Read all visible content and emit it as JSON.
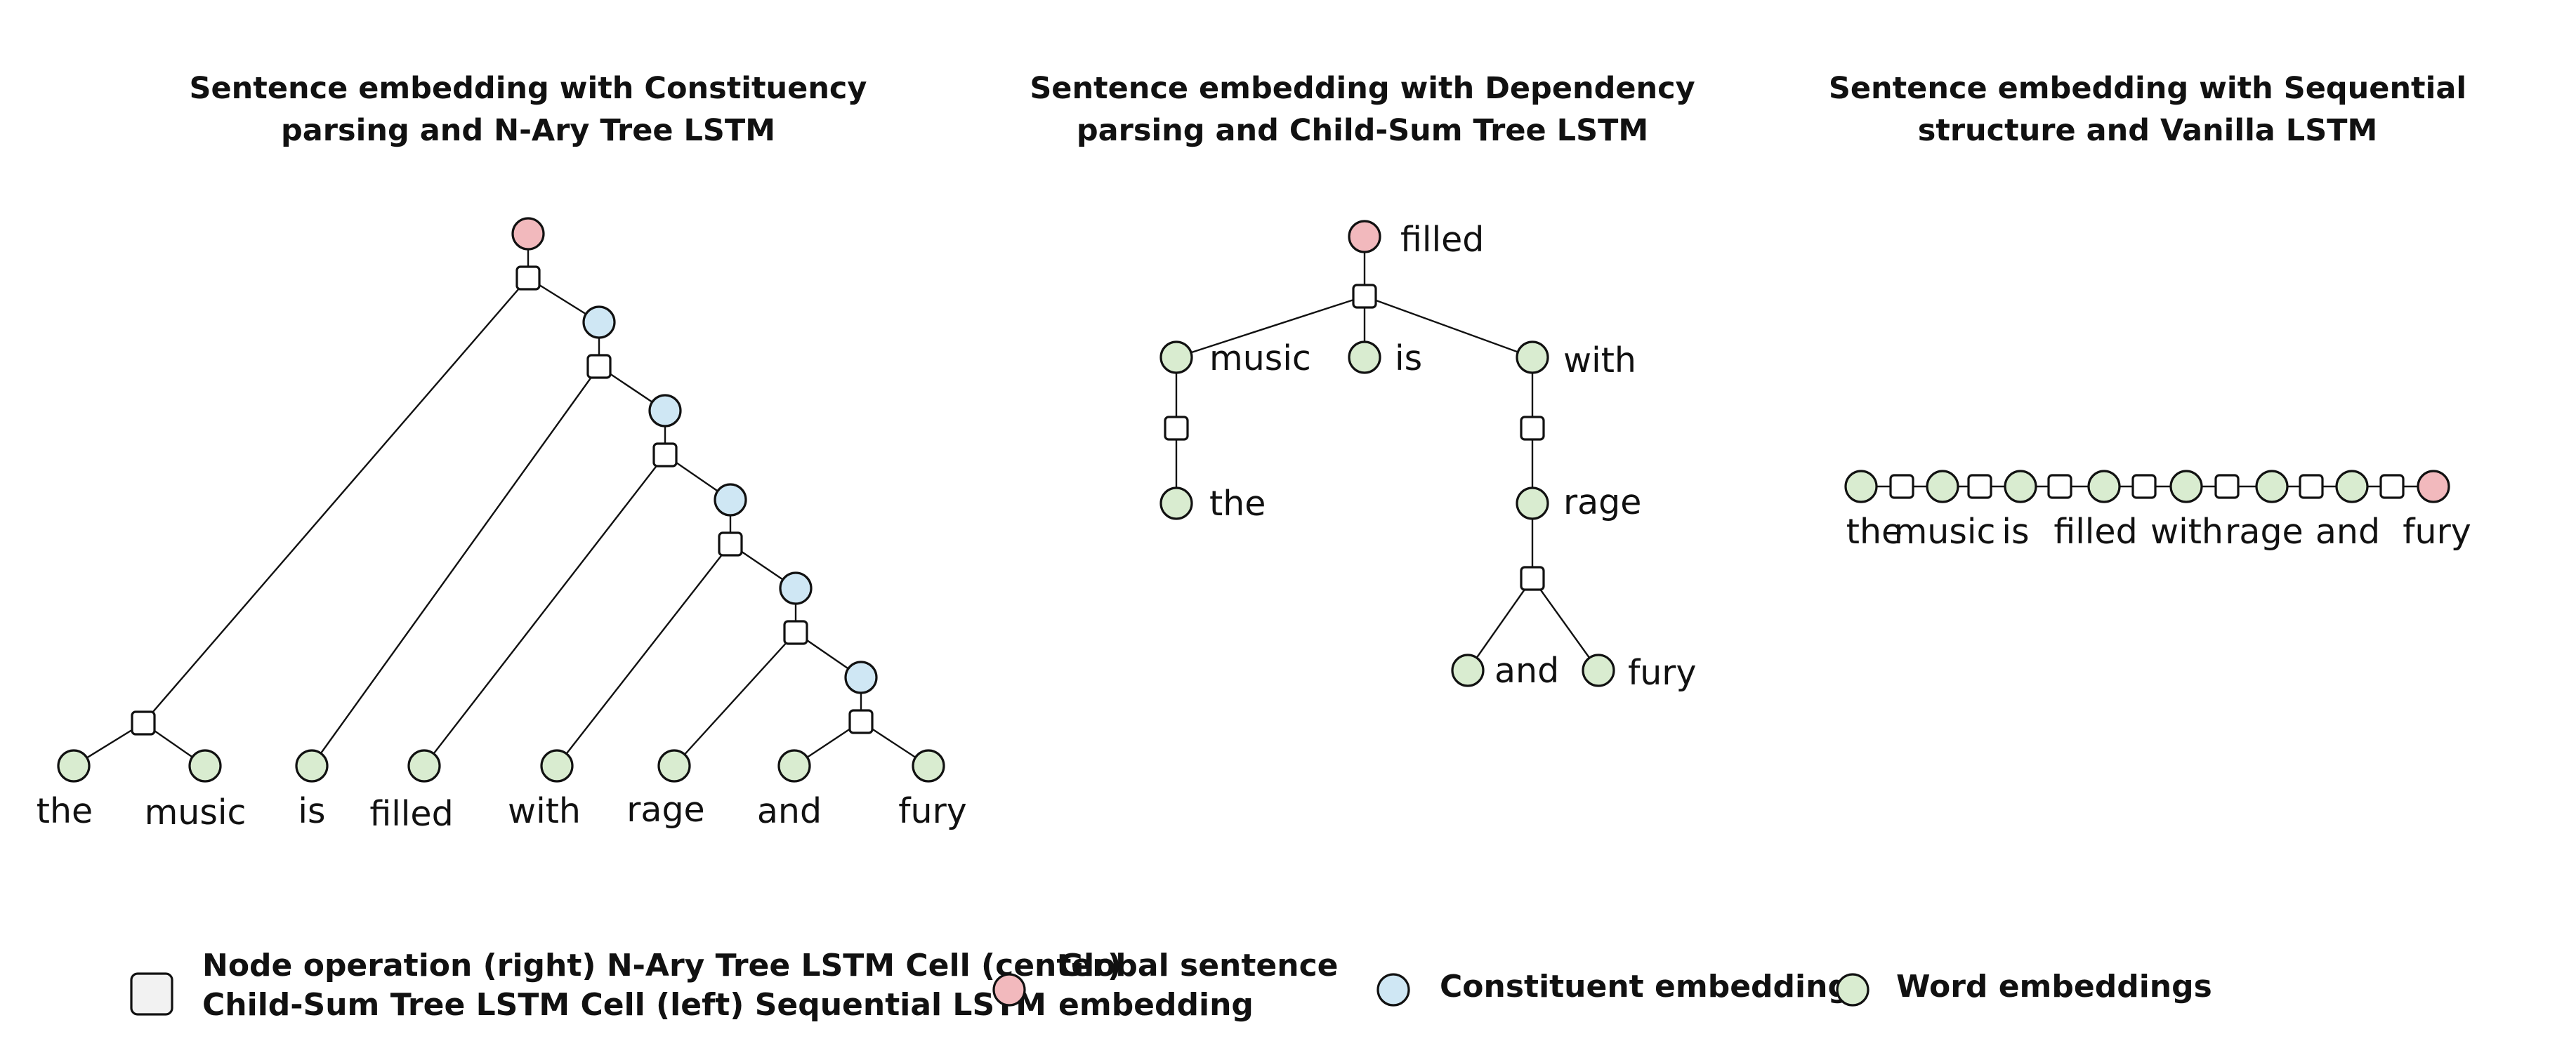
{
  "colors": {
    "word": "#d9ecd0",
    "constituent": "#cfe7f4",
    "global": "#f2b9bd",
    "op": "#ffffff",
    "legend_op": "#f2f2f2",
    "stroke": "#111111"
  },
  "panels": [
    {
      "id": "constituency",
      "title_lines": [
        "Sentence embedding with Constituency",
        "parsing and N-Ary Tree LSTM"
      ],
      "words": [
        "the",
        "music",
        "is",
        "filled",
        "with",
        "rage",
        "and",
        "fury"
      ]
    },
    {
      "id": "dependency",
      "title_lines": [
        "Sentence embedding with Dependency",
        "parsing and Child-Sum Tree LSTM"
      ],
      "words": [
        "filled",
        "music",
        "is",
        "with",
        "the",
        "rage",
        "and",
        "fury"
      ]
    },
    {
      "id": "sequential",
      "title_lines": [
        "Sentence embedding with Sequential",
        "structure and Vanilla LSTM"
      ],
      "words": [
        "the",
        "music",
        "is",
        "filled",
        "with",
        "rage",
        "and",
        "fury"
      ]
    }
  ],
  "legend": {
    "op": [
      "Node operation (right) N-Ary Tree LSTM Cell (center)",
      "Child-Sum Tree LSTM Cell (left) Sequential LSTM"
    ],
    "global": [
      "Global sentence",
      "embedding"
    ],
    "constituent": [
      "Constituent embeddings"
    ],
    "word": [
      "Word embeddings"
    ]
  }
}
